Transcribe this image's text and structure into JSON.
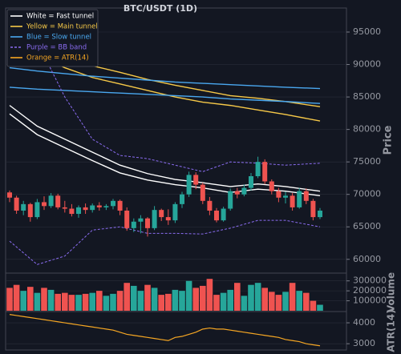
{
  "chart_data": {
    "type": "candlestick",
    "title": "BTC/USDT (1D)",
    "price_axis_label": "Price",
    "volume_axis_label": "Volume",
    "atr_axis_label": "ATR(14)",
    "ylim": [
      58000,
      98700
    ],
    "yticks": [
      60000,
      65000,
      70000,
      75000,
      80000,
      85000,
      90000,
      95000
    ],
    "up_color": "#26a69a",
    "down_color": "#ef5350",
    "open": [
      70300,
      69500,
      67500,
      68500,
      66500,
      68800,
      68200,
      69800,
      68000,
      67800,
      67000,
      68000,
      67600,
      68300,
      68000,
      68200,
      69000,
      67500,
      64800,
      65800,
      66300,
      64800,
      67600,
      66500,
      66000,
      68500,
      70000,
      73000,
      71500,
      69000,
      67500,
      66000,
      67800,
      70500,
      70000,
      71000,
      72800,
      75000,
      72000,
      70500,
      69500,
      69800,
      68000,
      70500,
      69000,
      66500
    ],
    "close": [
      69500,
      67500,
      68500,
      66500,
      68800,
      68200,
      69800,
      68000,
      67800,
      67000,
      68000,
      67600,
      68300,
      68000,
      68200,
      69000,
      67500,
      64800,
      65800,
      66300,
      64800,
      67600,
      66500,
      66000,
      68500,
      70000,
      73000,
      71500,
      69000,
      67500,
      66000,
      67800,
      70500,
      70000,
      71000,
      72800,
      75000,
      72000,
      70500,
      69500,
      69800,
      68000,
      70500,
      69000,
      66500,
      67500
    ],
    "high": [
      70600,
      69800,
      69000,
      68700,
      69300,
      69700,
      70200,
      70100,
      69000,
      68500,
      68300,
      68600,
      68600,
      68800,
      68500,
      69300,
      69200,
      68000,
      66300,
      66800,
      66500,
      68200,
      67800,
      67700,
      68800,
      70400,
      73500,
      73400,
      71800,
      69600,
      67900,
      68100,
      70900,
      71000,
      71500,
      73300,
      75800,
      75400,
      72300,
      71000,
      70400,
      70200,
      71000,
      70900,
      69300,
      67900
    ],
    "low": [
      68800,
      67000,
      66800,
      65800,
      66200,
      67600,
      67900,
      67700,
      67200,
      66600,
      66400,
      67000,
      67200,
      67500,
      67600,
      67700,
      66800,
      64400,
      64200,
      64000,
      63500,
      64500,
      65900,
      65300,
      65600,
      67900,
      69600,
      70800,
      68500,
      66800,
      65700,
      65800,
      67500,
      69400,
      69700,
      70600,
      72500,
      71600,
      70000,
      68800,
      68600,
      67500,
      67800,
      68500,
      66000,
      66200
    ],
    "line_x": [
      0,
      4,
      8,
      12,
      16,
      20,
      24,
      28,
      32,
      36,
      40,
      45
    ],
    "lines": [
      {
        "name": "White = Fast tunnel",
        "color": "#ffffff",
        "dashed": false,
        "upper": [
          83700,
          80500,
          78500,
          76500,
          74500,
          73200,
          72300,
          71800,
          71200,
          71600,
          71200,
          70500
        ],
        "lower": [
          82400,
          79200,
          77200,
          75200,
          73300,
          72200,
          71500,
          71000,
          70300,
          70800,
          70500,
          69800
        ]
      },
      {
        "name": "Yellow = Main tunnel",
        "color": "#f7c948",
        "dashed": false,
        "upper": [
          94500,
          93000,
          91200,
          89800,
          88800,
          87700,
          86800,
          86000,
          85200,
          84800,
          84300,
          83500
        ],
        "lower": [
          93000,
          91500,
          89500,
          88000,
          87000,
          86000,
          85000,
          84200,
          83700,
          83000,
          82300,
          81300
        ]
      },
      {
        "name": "Blue = Slow tunnel",
        "color": "#4aa8f0",
        "dashed": false,
        "upper": [
          89500,
          89000,
          88600,
          88200,
          87900,
          87600,
          87300,
          87100,
          86900,
          86700,
          86500,
          86300
        ],
        "lower": [
          86500,
          86200,
          86000,
          85800,
          85600,
          85400,
          85200,
          85000,
          84700,
          84500,
          84300,
          84000
        ]
      },
      {
        "name": "Purple = BB band",
        "color": "#8a6cf0",
        "dashed": true,
        "upper": [
          97000,
          93500,
          85000,
          78500,
          76000,
          75500,
          74500,
          73500,
          75000,
          74800,
          74500,
          74800
        ],
        "lower": [
          62800,
          59200,
          60500,
          64500,
          65000,
          64000,
          64000,
          63900,
          64800,
          66000,
          66000,
          65000
        ]
      }
    ],
    "atr": {
      "name": "Orange = ATR(14)",
      "color": "#f5a623",
      "ylim": [
        2700,
        4500
      ],
      "yticks": [
        3000,
        4000
      ],
      "values": [
        4400,
        4350,
        4300,
        4250,
        4200,
        4150,
        4100,
        4050,
        4000,
        3950,
        3900,
        3850,
        3800,
        3750,
        3700,
        3650,
        3550,
        3450,
        3400,
        3350,
        3300,
        3250,
        3200,
        3150,
        3300,
        3350,
        3450,
        3550,
        3700,
        3750,
        3700,
        3700,
        3650,
        3600,
        3550,
        3500,
        3450,
        3400,
        3350,
        3300,
        3200,
        3150,
        3100,
        3000,
        2950,
        2900
      ]
    },
    "volume": {
      "ylim": [
        0,
        370000
      ],
      "yticks": [
        100000,
        200000,
        300000
      ],
      "values": [
        230000,
        260000,
        200000,
        240000,
        180000,
        230000,
        210000,
        170000,
        180000,
        160000,
        160000,
        170000,
        180000,
        200000,
        150000,
        170000,
        200000,
        280000,
        250000,
        200000,
        260000,
        230000,
        160000,
        170000,
        210000,
        200000,
        300000,
        230000,
        250000,
        320000,
        160000,
        180000,
        210000,
        280000,
        150000,
        260000,
        280000,
        230000,
        190000,
        160000,
        190000,
        280000,
        200000,
        180000,
        100000,
        60000
      ]
    }
  }
}
